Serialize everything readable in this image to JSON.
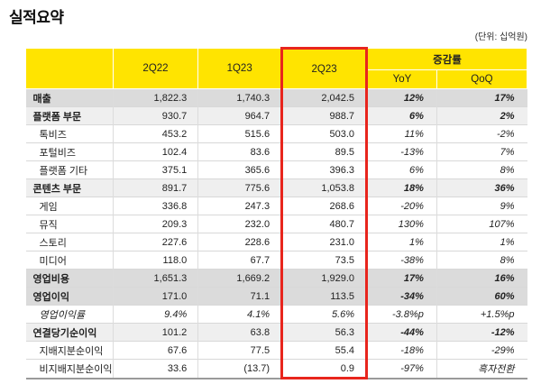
{
  "page": {
    "title": "실적요약",
    "unit_note": "(단위: 십억원)"
  },
  "table": {
    "header": {
      "quarters": [
        "2Q22",
        "1Q23",
        "2Q23"
      ],
      "highlighted_quarter": "2Q23",
      "change_group": "증감률",
      "change_cols": [
        "YoY",
        "QoQ"
      ]
    },
    "rows": [
      {
        "label": "매출",
        "style": "section-dark",
        "values": [
          "1,822.3",
          "1,740.3",
          "2,042.5"
        ],
        "yoy": "12%",
        "qoq": "17%"
      },
      {
        "label": "플랫폼 부문",
        "style": "section-light",
        "values": [
          "930.7",
          "964.7",
          "988.7"
        ],
        "yoy": "6%",
        "qoq": "2%"
      },
      {
        "label": "톡비즈",
        "style": "sub",
        "values": [
          "453.2",
          "515.6",
          "503.0"
        ],
        "yoy": "11%",
        "qoq": "-2%"
      },
      {
        "label": "포털비즈",
        "style": "sub",
        "values": [
          "102.4",
          "83.6",
          "89.5"
        ],
        "yoy": "-13%",
        "qoq": "7%"
      },
      {
        "label": "플랫폼 기타",
        "style": "sub",
        "values": [
          "375.1",
          "365.6",
          "396.3"
        ],
        "yoy": "6%",
        "qoq": "8%"
      },
      {
        "label": "콘텐츠 부문",
        "style": "section-light",
        "values": [
          "891.7",
          "775.6",
          "1,053.8"
        ],
        "yoy": "18%",
        "qoq": "36%"
      },
      {
        "label": "게임",
        "style": "sub",
        "values": [
          "336.8",
          "247.3",
          "268.6"
        ],
        "yoy": "-20%",
        "qoq": "9%"
      },
      {
        "label": "뮤직",
        "style": "sub",
        "values": [
          "209.3",
          "232.0",
          "480.7"
        ],
        "yoy": "130%",
        "qoq": "107%"
      },
      {
        "label": "스토리",
        "style": "sub",
        "values": [
          "227.6",
          "228.6",
          "231.0"
        ],
        "yoy": "1%",
        "qoq": "1%"
      },
      {
        "label": "미디어",
        "style": "sub",
        "values": [
          "118.0",
          "67.7",
          "73.5"
        ],
        "yoy": "-38%",
        "qoq": "8%"
      },
      {
        "label": "영업비용",
        "style": "section-dark",
        "values": [
          "1,651.3",
          "1,669.2",
          "1,929.0"
        ],
        "yoy": "17%",
        "qoq": "16%"
      },
      {
        "label": "영업이익",
        "style": "section-dark",
        "values": [
          "171.0",
          "71.1",
          "113.5"
        ],
        "yoy": "-34%",
        "qoq": "60%"
      },
      {
        "label": "영업이익률",
        "style": "ratio",
        "values": [
          "9.4%",
          "4.1%",
          "5.6%"
        ],
        "yoy": "-3.8%p",
        "qoq": "+1.5%p"
      },
      {
        "label": "연결당기순이익",
        "style": "section-light",
        "values": [
          "101.2",
          "63.8",
          "56.3"
        ],
        "yoy": "-44%",
        "qoq": "-12%"
      },
      {
        "label": "지배지분순이익",
        "style": "sub",
        "values": [
          "67.6",
          "77.5",
          "55.4"
        ],
        "yoy": "-18%",
        "qoq": "-29%"
      },
      {
        "label": "비지배지분순이익",
        "style": "sub",
        "values": [
          "33.6",
          "(13.7)",
          "0.9"
        ],
        "yoy": "-97%",
        "qoq": "흑자전환"
      }
    ]
  },
  "colors": {
    "header_yellow": "#FFE400",
    "highlight_red": "#E8251D",
    "row_dark_gray": "#DBDBDB",
    "row_light_gray": "#EFEFEF"
  }
}
